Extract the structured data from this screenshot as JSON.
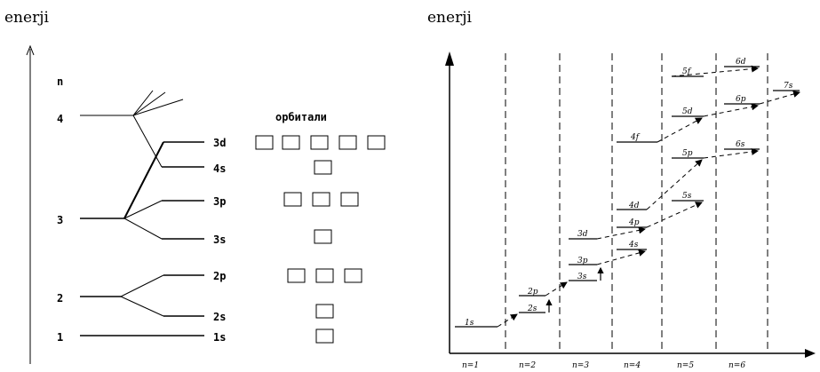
{
  "left": {
    "energy_label": "enerji",
    "n_label": "n",
    "shells": [
      "4",
      "3",
      "2",
      "1"
    ],
    "subshells": [
      "3d",
      "4s",
      "3p",
      "3s",
      "2p",
      "2s",
      "1s"
    ],
    "orbitals_label": "орбитали",
    "orbital_box_counts": [
      5,
      1,
      3,
      1,
      3,
      1,
      1
    ]
  },
  "right": {
    "energy_label": "enerji",
    "levels": [
      "1s",
      "2s",
      "2p",
      "3s",
      "3p",
      "3d",
      "4s",
      "4p",
      "4d",
      "4f",
      "5s",
      "5p",
      "5d",
      "5f",
      "6s",
      "6p",
      "6d",
      "7s"
    ],
    "columns": [
      "n=1",
      "n=2",
      "n=3",
      "n=4",
      "n=5",
      "n=6"
    ]
  }
}
